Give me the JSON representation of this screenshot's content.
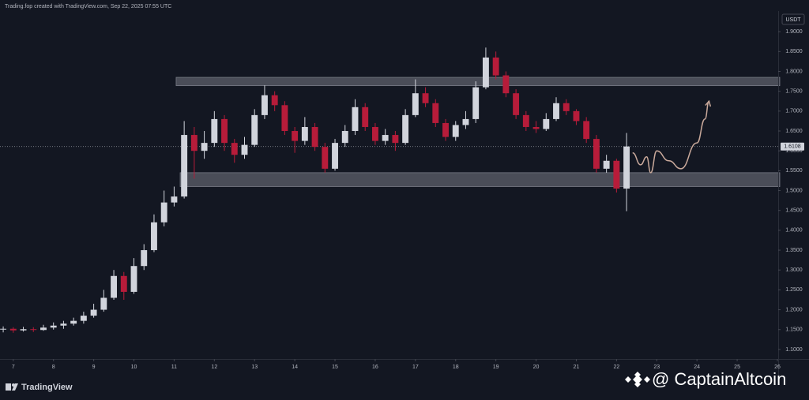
{
  "chart_data": {
    "type": "candlestick",
    "header": "Trading.fop created with TradingView.com, Sep 22, 2025 07:55 UTC",
    "currency": "USDT",
    "brand": "TradingView",
    "watermark": "@ CaptainAltcoin",
    "up_color": "#d1d4dc",
    "down_color": "#b71c3a",
    "x": [
      6.75,
      7,
      7.25,
      7.5,
      7.75,
      8,
      8.25,
      8.5,
      8.75,
      9,
      9.25,
      9.5,
      9.75,
      10,
      10.25,
      10.5,
      10.75,
      11,
      11.25,
      11.5,
      11.75,
      12,
      12.25,
      12.5,
      12.75,
      13,
      13.25,
      13.5,
      13.75,
      14,
      14.25,
      14.5,
      14.75,
      15,
      15.25,
      15.5,
      15.75,
      16,
      16.25,
      16.5,
      16.75,
      17,
      17.25,
      17.5,
      17.75,
      18,
      18.25,
      18.5,
      18.75,
      19,
      19.25,
      19.5,
      19.75,
      20,
      20.25,
      20.5,
      20.75,
      21,
      21.25,
      21.5,
      21.75,
      22,
      22.25
    ],
    "open": [
      1.15,
      1.152,
      1.148,
      1.151,
      1.149,
      1.155,
      1.16,
      1.165,
      1.172,
      1.185,
      1.2,
      1.23,
      1.285,
      1.245,
      1.31,
      1.35,
      1.42,
      1.47,
      1.485,
      1.64,
      1.6,
      1.62,
      1.68,
      1.62,
      1.59,
      1.615,
      1.69,
      1.74,
      1.715,
      1.65,
      1.625,
      1.66,
      1.61,
      1.555,
      1.62,
      1.65,
      1.71,
      1.66,
      1.625,
      1.64,
      1.62,
      1.69,
      1.745,
      1.72,
      1.67,
      1.635,
      1.665,
      1.68,
      1.76,
      1.835,
      1.79,
      1.745,
      1.69,
      1.66,
      1.655,
      1.68,
      1.72,
      1.7,
      1.675,
      1.63,
      1.555,
      1.575,
      1.505
    ],
    "high": [
      1.158,
      1.156,
      1.157,
      1.156,
      1.162,
      1.168,
      1.172,
      1.18,
      1.195,
      1.215,
      1.25,
      1.3,
      1.295,
      1.33,
      1.365,
      1.44,
      1.5,
      1.51,
      1.675,
      1.66,
      1.65,
      1.7,
      1.69,
      1.63,
      1.635,
      1.705,
      1.765,
      1.75,
      1.725,
      1.66,
      1.685,
      1.67,
      1.62,
      1.63,
      1.665,
      1.73,
      1.72,
      1.67,
      1.655,
      1.65,
      1.705,
      1.78,
      1.76,
      1.73,
      1.68,
      1.675,
      1.7,
      1.775,
      1.86,
      1.85,
      1.8,
      1.755,
      1.7,
      1.675,
      1.695,
      1.735,
      1.73,
      1.705,
      1.685,
      1.64,
      1.59,
      1.58,
      1.645
    ],
    "low": [
      1.143,
      1.142,
      1.145,
      1.144,
      1.147,
      1.15,
      1.152,
      1.16,
      1.165,
      1.18,
      1.195,
      1.225,
      1.225,
      1.24,
      1.3,
      1.345,
      1.41,
      1.46,
      1.48,
      1.53,
      1.58,
      1.61,
      1.6,
      1.57,
      1.58,
      1.61,
      1.68,
      1.7,
      1.64,
      1.595,
      1.615,
      1.6,
      1.545,
      1.55,
      1.61,
      1.64,
      1.65,
      1.615,
      1.615,
      1.6,
      1.615,
      1.685,
      1.71,
      1.66,
      1.625,
      1.625,
      1.655,
      1.67,
      1.755,
      1.78,
      1.735,
      1.68,
      1.65,
      1.645,
      1.65,
      1.675,
      1.69,
      1.665,
      1.62,
      1.545,
      1.545,
      1.495,
      1.448
    ],
    "close": [
      1.152,
      1.148,
      1.151,
      1.149,
      1.155,
      1.16,
      1.165,
      1.172,
      1.185,
      1.2,
      1.23,
      1.285,
      1.245,
      1.31,
      1.35,
      1.42,
      1.47,
      1.485,
      1.64,
      1.6,
      1.62,
      1.68,
      1.62,
      1.59,
      1.615,
      1.69,
      1.74,
      1.715,
      1.65,
      1.625,
      1.66,
      1.61,
      1.555,
      1.62,
      1.65,
      1.71,
      1.66,
      1.625,
      1.64,
      1.62,
      1.69,
      1.745,
      1.72,
      1.67,
      1.635,
      1.665,
      1.68,
      1.76,
      1.835,
      1.79,
      1.745,
      1.69,
      1.66,
      1.655,
      1.68,
      1.72,
      1.7,
      1.675,
      1.63,
      1.555,
      1.575,
      1.505,
      1.611
    ],
    "last_price": 1.6108,
    "zones": [
      {
        "low": 1.764,
        "high": 1.785,
        "start": 11.05,
        "color": "#5d606b"
      },
      {
        "low": 1.51,
        "high": 1.545,
        "start": 11.15,
        "color": "#5d606b"
      }
    ],
    "projection": {
      "color": "#c9a99b",
      "x": [
        22.4,
        22.6,
        22.75,
        22.85,
        23.0,
        23.3,
        23.6,
        24.0,
        24.2,
        24.3
      ],
      "y": [
        1.595,
        1.565,
        1.585,
        1.545,
        1.6,
        1.575,
        1.555,
        1.62,
        1.68,
        1.725
      ]
    },
    "xlim": [
      6.67,
      26.02
    ],
    "xticks": [
      7,
      8,
      9,
      10,
      11,
      12,
      13,
      14,
      15,
      16,
      17,
      18,
      19,
      20,
      21,
      22,
      23,
      24,
      25,
      26
    ],
    "ylim": [
      1.076,
      1.946
    ],
    "yticks": [
      {
        "value": 1.1,
        "label": "1.1000"
      },
      {
        "value": 1.15,
        "label": "1.1500"
      },
      {
        "value": 1.2,
        "label": "1.2000"
      },
      {
        "value": 1.25,
        "label": "1.2500"
      },
      {
        "value": 1.3,
        "label": "1.3000"
      },
      {
        "value": 1.35,
        "label": "1.3500"
      },
      {
        "value": 1.4,
        "label": "1.4000"
      },
      {
        "value": 1.45,
        "label": "1.4500"
      },
      {
        "value": 1.5,
        "label": "1.5000"
      },
      {
        "value": 1.55,
        "label": "1.5500"
      },
      {
        "value": 1.6,
        "label": "1.6000"
      },
      {
        "value": 1.65,
        "label": "1.6500"
      },
      {
        "value": 1.7,
        "label": "1.7000"
      },
      {
        "value": 1.75,
        "label": "1.7500"
      },
      {
        "value": 1.8,
        "label": "1.8000"
      },
      {
        "value": 1.85,
        "label": "1.8500"
      },
      {
        "value": 1.9,
        "label": "1.9000"
      }
    ]
  }
}
